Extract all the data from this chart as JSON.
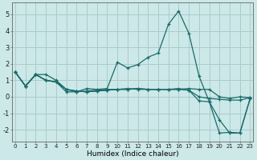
{
  "xlabel": "Humidex (Indice chaleur)",
  "background_color": "#cce8e8",
  "grid_color": "#aacccc",
  "line_color": "#1a6b6b",
  "x_ticks": [
    0,
    1,
    2,
    3,
    4,
    5,
    6,
    7,
    8,
    9,
    10,
    11,
    12,
    13,
    14,
    15,
    16,
    17,
    18,
    19,
    20,
    21,
    22,
    23
  ],
  "y_ticks": [
    -2,
    -1,
    0,
    1,
    2,
    3,
    4,
    5
  ],
  "xlim": [
    -0.3,
    23.3
  ],
  "ylim": [
    -2.7,
    5.7
  ],
  "lines": {
    "peak": [
      1.5,
      0.65,
      1.35,
      1.35,
      1.0,
      0.45,
      0.3,
      0.5,
      0.45,
      0.5,
      2.1,
      1.75,
      1.95,
      2.4,
      2.65,
      4.4,
      5.2,
      3.85,
      1.25,
      -0.3,
      -1.4,
      -2.2,
      -2.2,
      -0.1
    ],
    "flat1": [
      1.5,
      0.65,
      1.35,
      1.0,
      0.9,
      0.45,
      0.35,
      0.3,
      0.35,
      0.4,
      0.45,
      0.45,
      0.5,
      0.45,
      0.45,
      0.45,
      0.45,
      0.5,
      0.45,
      0.45,
      0.0,
      -0.1,
      0.0,
      -0.05
    ],
    "flat2": [
      1.5,
      0.65,
      1.35,
      1.0,
      0.9,
      0.45,
      0.35,
      0.3,
      0.35,
      0.4,
      0.45,
      0.45,
      0.5,
      0.45,
      0.45,
      0.45,
      0.5,
      0.4,
      0.0,
      -0.1,
      -0.15,
      -0.2,
      -0.2,
      -0.05
    ],
    "decline": [
      1.5,
      0.65,
      1.35,
      1.0,
      0.9,
      0.3,
      0.3,
      0.35,
      0.4,
      0.45,
      0.45,
      0.5,
      0.45,
      0.45,
      0.45,
      0.45,
      0.45,
      0.4,
      -0.25,
      -0.3,
      -2.2,
      -2.15,
      -2.2,
      -0.1
    ]
  }
}
